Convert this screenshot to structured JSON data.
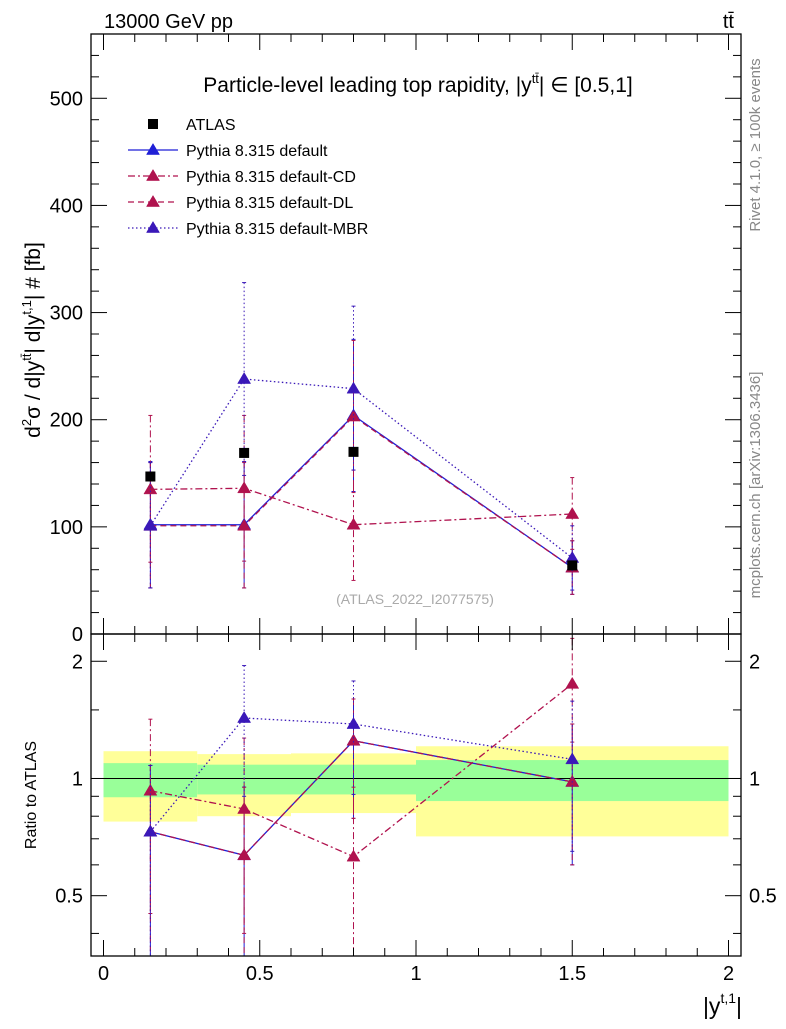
{
  "header": {
    "energy_label": "13000 GeV pp",
    "process_label": "tt̄"
  },
  "side_labels": {
    "rivet": "Rivet 4.1.0, ≥ 100k events",
    "mcplots": "mcplots.cern.ch [arXiv:1306.3436]"
  },
  "chart_data": [
    {
      "type": "scatter",
      "panel": "main",
      "title": "Particle-level leading top rapidity, |y^tt̄| ∈ [0.5,1]",
      "title_parts": {
        "prefix": "Particle-level leading top rapidity, |y",
        "sup": "tt̄",
        "suffix": "| ∈ [0.5,1]"
      },
      "ylabel": "d²σ / d|y^tt̄| d|y^t,1| # [fb]",
      "ylabel_parts": {
        "d": "d",
        "two": "2",
        "sigma": "σ / d|y",
        "sup1": "tt̄",
        "mid": "| d|y",
        "sup2": "t,1",
        "end": "| # [fb]"
      },
      "watermark": "(ATLAS_2022_I2077575)",
      "xlim": [
        -0.04,
        2.04
      ],
      "ylim": [
        0,
        560
      ],
      "yticks": [
        0,
        100,
        200,
        300,
        400,
        500
      ],
      "ytick_labels": [
        "0",
        "100",
        "200",
        "300",
        "400",
        "500"
      ],
      "legend_position": "top-left",
      "reference": {
        "name": "ATLAS",
        "x": [
          0.15,
          0.45,
          0.8,
          1.5
        ],
        "y": [
          147,
          169,
          170,
          64
        ],
        "xerr_bins": [
          [
            0,
            0.3
          ],
          [
            0.3,
            0.6
          ],
          [
            0.6,
            1.0
          ],
          [
            1.0,
            2.0
          ]
        ]
      },
      "series": [
        {
          "name": "Pythia 8.315 default",
          "color": "#1f1fd6",
          "dash": "solid",
          "x": [
            0.15,
            0.45,
            0.8,
            1.5
          ],
          "y": [
            102,
            102,
            204,
            62
          ],
          "err": [
            [
              43,
              161
            ],
            [
              43,
              161
            ],
            [
              133,
              275
            ],
            [
              37,
              87
            ]
          ]
        },
        {
          "name": "Pythia 8.315 default-CD",
          "color": "#b0124e",
          "dash": "dashdot",
          "x": [
            0.15,
            0.45,
            0.8,
            1.5
          ],
          "y": [
            135,
            136,
            102,
            112
          ],
          "err": [
            [
              67,
              204
            ],
            [
              68,
              204
            ],
            [
              50,
              153
            ],
            [
              79,
              146
            ]
          ]
        },
        {
          "name": "Pythia 8.315 default-DL",
          "color": "#b0124e",
          "dash": "dash",
          "x": [
            0.15,
            0.45,
            0.8,
            1.5
          ],
          "y": [
            101,
            101,
            203,
            62
          ],
          "err": [
            [
              43,
              160
            ],
            [
              43,
              160
            ],
            [
              132,
              274
            ],
            [
              37,
              87
            ]
          ]
        },
        {
          "name": "Pythia 8.315 default-MBR",
          "color": "#3a18b8",
          "dash": "dot",
          "x": [
            0.15,
            0.45,
            0.8,
            1.5
          ],
          "y": [
            101,
            238,
            229,
            71
          ],
          "err": [
            [
              43,
              160
            ],
            [
              148,
              328
            ],
            [
              153,
              306
            ],
            [
              41,
              101
            ]
          ]
        }
      ]
    },
    {
      "type": "scatter",
      "panel": "ratio",
      "ylabel": "Ratio to ATLAS",
      "xlabel": "|y^t,1|",
      "xlabel_parts": {
        "base": "|y",
        "sup": "t,1",
        "end": "|"
      },
      "xlim": [
        -0.04,
        2.04
      ],
      "ylim": [
        0.35,
        2.35
      ],
      "yticks": [
        0.5,
        1,
        2
      ],
      "ytick_labels": [
        "0.5",
        "1",
        "2"
      ],
      "xticks": [
        0,
        0.5,
        1,
        1.5,
        2
      ],
      "xtick_labels": [
        "0",
        "0.5",
        "1",
        "1.5",
        "2"
      ],
      "bands": [
        {
          "x0": 0.0,
          "x1": 0.3,
          "stat": [
            0.895,
            1.095
          ],
          "total": [
            0.775,
            1.175
          ]
        },
        {
          "x0": 0.3,
          "x1": 0.6,
          "stat": [
            0.91,
            1.085
          ],
          "total": [
            0.8,
            1.155
          ]
        },
        {
          "x0": 0.6,
          "x1": 1.0,
          "stat": [
            0.91,
            1.085
          ],
          "total": [
            0.815,
            1.16
          ]
        },
        {
          "x0": 1.0,
          "x1": 2.0,
          "stat": [
            0.875,
            1.115
          ],
          "total": [
            0.71,
            1.21
          ]
        }
      ],
      "series": [
        {
          "name": "Pythia 8.315 default",
          "x": [
            0.15,
            0.45,
            0.8,
            1.5
          ],
          "y": [
            0.73,
            0.635,
            1.25,
            0.98
          ],
          "err": [
            [
              0.3,
              1.08
            ],
            [
              0.3,
              0.95
            ],
            [
              0.79,
              1.6
            ],
            [
              0.6,
              1.38
            ]
          ]
        },
        {
          "name": "Pythia 8.315 default-CD",
          "x": [
            0.15,
            0.45,
            0.8,
            1.5
          ],
          "y": [
            0.93,
            0.835,
            0.63,
            1.75
          ],
          "err": [
            [
              0.45,
              1.42
            ],
            [
              0.4,
              1.27
            ],
            [
              0.3,
              0.95
            ],
            [
              1.24,
              2.29
            ]
          ]
        },
        {
          "name": "Pythia 8.315 default-DL",
          "x": [
            0.15,
            0.45,
            0.8,
            1.5
          ],
          "y": [
            0.73,
            0.635,
            1.25,
            0.98
          ],
          "err": [
            [
              0.3,
              1.08
            ],
            [
              0.3,
              0.95
            ],
            [
              0.79,
              1.6
            ],
            [
              0.6,
              1.38
            ]
          ]
        },
        {
          "name": "Pythia 8.315 default-MBR",
          "x": [
            0.15,
            0.45,
            0.8,
            1.5
          ],
          "y": [
            0.73,
            1.43,
            1.38,
            1.12
          ],
          "err": [
            [
              0.3,
              1.08
            ],
            [
              0.9,
              1.95
            ],
            [
              0.91,
              1.78
            ],
            [
              0.65,
              1.58
            ]
          ]
        }
      ]
    }
  ]
}
